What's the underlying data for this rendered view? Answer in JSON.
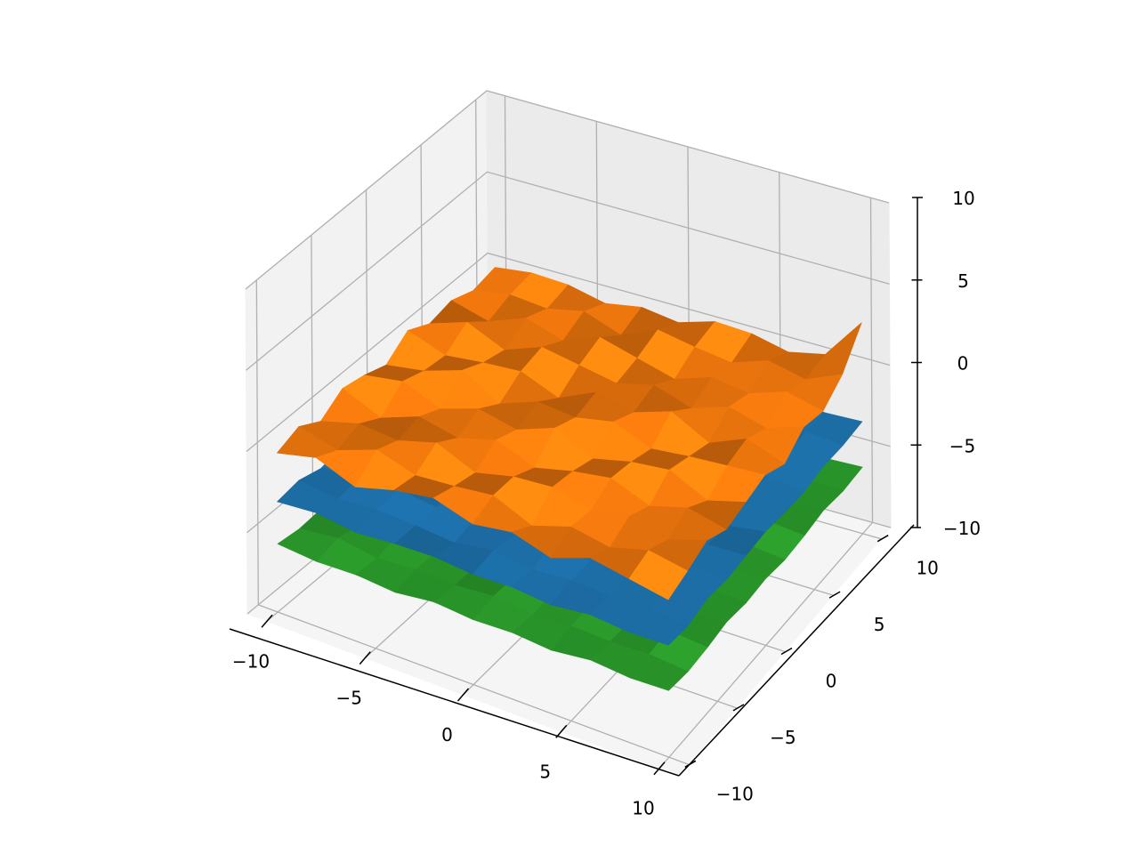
{
  "chart_data": {
    "type": "surface3d",
    "title": "",
    "xlabel": "",
    "ylabel": "",
    "zlabel": "",
    "xlim": [
      -11,
      11
    ],
    "ylim": [
      -11,
      11
    ],
    "zlim": [
      -10,
      10
    ],
    "x_ticks": [
      -10,
      -5,
      0,
      5,
      10
    ],
    "y_ticks": [
      -10,
      -5,
      0,
      5,
      10
    ],
    "z_ticks": [
      -10,
      -5,
      0,
      5,
      10
    ],
    "x_tick_labels": [
      "−10",
      "−5",
      "0",
      "5",
      "10"
    ],
    "y_tick_labels": [
      "−10",
      "−5",
      "0",
      "5",
      "10"
    ],
    "z_tick_labels": [
      "−10",
      "−5",
      "0",
      "5",
      "10"
    ],
    "grid": true,
    "legend": "none",
    "grid_coords": [
      -10,
      -8,
      -6,
      -4,
      -2,
      0,
      2,
      4,
      6,
      8,
      10
    ],
    "series": [
      {
        "color": "#2ca02c",
        "z": [
          [
            -5.8,
            -6.0,
            -5.9,
            -6.1,
            -5.7,
            -5.9,
            -6.2,
            -5.8,
            -6.0,
            -5.9,
            -6.1
          ],
          [
            -6.0,
            -5.7,
            -6.1,
            -5.9,
            -6.0,
            -5.8,
            -5.9,
            -6.1,
            -5.8,
            -6.0,
            -5.9
          ],
          [
            -5.9,
            -6.1,
            -5.8,
            -6.0,
            -6.2,
            -5.9,
            -5.8,
            -6.0,
            -6.1,
            -5.8,
            -6.0
          ],
          [
            -6.1,
            -5.9,
            -6.0,
            -5.8,
            -5.9,
            -6.1,
            -6.0,
            -5.9,
            -5.8,
            -6.1,
            -5.9
          ],
          [
            -5.8,
            -6.0,
            -6.1,
            -5.9,
            -6.0,
            -5.8,
            -6.1,
            -6.0,
            -5.9,
            -6.0,
            -5.8
          ],
          [
            -6.0,
            -5.8,
            -5.9,
            -6.1,
            -5.8,
            -6.0,
            -5.9,
            -5.8,
            -6.1,
            -5.9,
            -6.0
          ],
          [
            -5.9,
            -6.1,
            -6.0,
            -5.8,
            -6.1,
            -5.9,
            -6.0,
            -6.1,
            -5.9,
            -5.8,
            -6.1
          ],
          [
            -6.1,
            -5.9,
            -5.8,
            -6.0,
            -5.9,
            -6.1,
            -5.8,
            -5.9,
            -6.0,
            -6.1,
            -5.9
          ],
          [
            -5.8,
            -6.0,
            -6.1,
            -5.9,
            -6.0,
            -5.8,
            -6.1,
            -6.0,
            -5.9,
            -6.0,
            -5.8
          ],
          [
            -6.0,
            -5.9,
            -5.8,
            -6.1,
            -5.9,
            -6.0,
            -5.9,
            -5.8,
            -6.1,
            -5.9,
            -6.0
          ],
          [
            -5.9,
            -6.1,
            -6.0,
            -5.8,
            -6.0,
            -5.9,
            -6.1,
            -6.0,
            -5.8,
            -6.0,
            -5.9
          ]
        ]
      },
      {
        "color": "#1f77b4",
        "z": [
          [
            -3.2,
            -3.0,
            -3.4,
            -3.1,
            -2.9,
            -3.3,
            -3.0,
            -3.2,
            -3.1,
            -3.3,
            -3.0
          ],
          [
            -3.0,
            -3.3,
            -3.1,
            -3.2,
            -3.0,
            -3.1,
            -3.4,
            -3.0,
            -3.2,
            -3.1,
            -3.2
          ],
          [
            -3.3,
            -3.1,
            -3.0,
            -3.4,
            -3.2,
            -3.0,
            -3.1,
            -3.3,
            -3.0,
            -3.2,
            -3.1
          ],
          [
            -3.1,
            -3.2,
            -3.3,
            -3.0,
            -3.1,
            -3.4,
            -3.2,
            -3.1,
            -3.3,
            -3.0,
            -3.2
          ],
          [
            -3.0,
            -3.4,
            -3.1,
            -3.2,
            -3.3,
            -3.1,
            -3.0,
            -3.2,
            -3.1,
            -3.3,
            -3.0
          ],
          [
            -3.2,
            -3.0,
            -3.3,
            -3.1,
            -3.0,
            -3.2,
            -3.3,
            -3.0,
            -3.2,
            -3.1,
            -3.3
          ],
          [
            -3.1,
            -3.3,
            -3.0,
            -3.2,
            -3.4,
            -3.0,
            -3.1,
            -3.3,
            -3.0,
            -3.2,
            -3.1
          ],
          [
            -3.3,
            -3.1,
            -3.2,
            -3.0,
            -3.1,
            -3.3,
            -3.2,
            -3.0,
            -3.4,
            -3.1,
            -3.2
          ],
          [
            -3.0,
            -3.2,
            -3.1,
            -3.3,
            -3.0,
            -3.1,
            -3.3,
            -3.2,
            -3.0,
            -3.3,
            -3.0
          ],
          [
            -3.2,
            -3.1,
            -3.3,
            -3.0,
            -3.2,
            -3.4,
            -3.0,
            -3.1,
            -3.2,
            -3.0,
            -3.2
          ],
          [
            -3.1,
            -3.3,
            -3.0,
            -3.2,
            -3.1,
            -3.0,
            -3.2,
            -3.3,
            -3.1,
            -3.2,
            -3.1
          ]
        ]
      },
      {
        "color": "#ff7f0e",
        "z": [
          [
            -0.2,
            0.3,
            -0.5,
            0.4,
            0.1,
            -0.4,
            0.6,
            -0.1,
            0.2,
            -0.3,
            0.0
          ],
          [
            0.4,
            -0.3,
            0.2,
            -0.6,
            0.5,
            0.0,
            -0.2,
            0.7,
            -0.4,
            0.1,
            0.3
          ],
          [
            -0.5,
            0.6,
            0.0,
            0.3,
            -0.4,
            0.8,
            0.1,
            -0.3,
            0.5,
            -0.1,
            0.2
          ],
          [
            0.2,
            -0.1,
            0.7,
            -0.2,
            0.4,
            -0.5,
            0.3,
            0.6,
            -0.2,
            0.4,
            -0.3
          ],
          [
            0.6,
            0.1,
            -0.3,
            0.5,
            -0.1,
            0.4,
            -0.6,
            0.2,
            0.7,
            -0.4,
            0.1
          ],
          [
            -0.1,
            0.4,
            0.3,
            -0.4,
            0.8,
            0.2,
            0.5,
            -0.2,
            0.1,
            0.6,
            -0.2
          ],
          [
            0.3,
            -0.6,
            0.5,
            0.2,
            -0.3,
            0.7,
            0.0,
            0.4,
            -0.5,
            0.2,
            0.5
          ],
          [
            -0.4,
            0.2,
            -0.1,
            0.6,
            0.3,
            -0.2,
            0.8,
            -0.3,
            0.3,
            -0.1,
            0.4
          ],
          [
            0.5,
            -0.2,
            0.4,
            -0.3,
            0.6,
            0.1,
            -0.4,
            0.5,
            0.0,
            0.7,
            -0.1
          ],
          [
            0.1,
            0.5,
            -0.2,
            0.4,
            -0.5,
            0.3,
            0.6,
            -0.1,
            0.8,
            0.2,
            0.4
          ],
          [
            -0.3,
            0.1,
            0.6,
            -0.1,
            0.2,
            0.5,
            -0.2,
            0.7,
            0.3,
            1.2,
            3.0
          ]
        ]
      }
    ]
  }
}
